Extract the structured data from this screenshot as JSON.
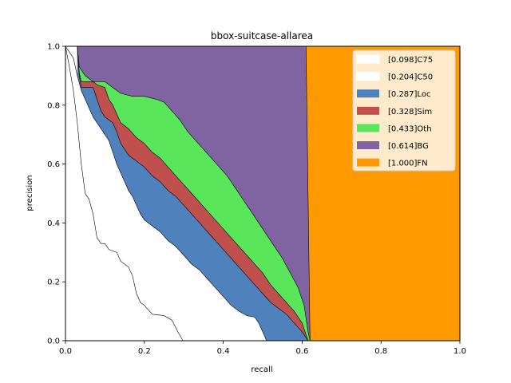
{
  "chart_data": {
    "type": "area",
    "title": "bbox-suitcase-allarea",
    "xlabel": "recall",
    "ylabel": "precision",
    "xlim": [
      0,
      1
    ],
    "ylim": [
      0,
      1
    ],
    "xticks": [
      "0.0",
      "0.2",
      "0.4",
      "0.6",
      "0.8",
      "1.0"
    ],
    "yticks": [
      "0.0",
      "0.2",
      "0.4",
      "0.6",
      "0.8",
      "1.0"
    ],
    "grid": false,
    "legend_position": "top-right",
    "series": [
      {
        "name": "[0.098]C75",
        "color": "#ffffff",
        "points": [
          [
            0,
            1.0
          ],
          [
            0.01,
            0.93
          ],
          [
            0.02,
            0.85
          ],
          [
            0.03,
            0.74
          ],
          [
            0.04,
            0.6
          ],
          [
            0.05,
            0.5
          ],
          [
            0.06,
            0.48
          ],
          [
            0.07,
            0.43
          ],
          [
            0.08,
            0.35
          ],
          [
            0.09,
            0.33
          ],
          [
            0.1,
            0.33
          ],
          [
            0.11,
            0.31
          ],
          [
            0.13,
            0.3
          ],
          [
            0.14,
            0.27
          ],
          [
            0.16,
            0.25
          ],
          [
            0.17,
            0.22
          ],
          [
            0.18,
            0.16
          ],
          [
            0.19,
            0.13
          ],
          [
            0.2,
            0.12
          ],
          [
            0.22,
            0.09
          ],
          [
            0.25,
            0.085
          ],
          [
            0.27,
            0.07
          ],
          [
            0.285,
            0.03
          ],
          [
            0.298,
            0.0
          ]
        ]
      },
      {
        "name": "[0.204]C50",
        "color": "#ffffff",
        "points": [
          [
            0,
            1.0
          ],
          [
            0.02,
            0.96
          ],
          [
            0.03,
            0.9
          ],
          [
            0.04,
            0.85
          ],
          [
            0.05,
            0.82
          ],
          [
            0.06,
            0.79
          ],
          [
            0.07,
            0.76
          ],
          [
            0.08,
            0.74
          ],
          [
            0.09,
            0.72
          ],
          [
            0.1,
            0.7
          ],
          [
            0.11,
            0.68
          ],
          [
            0.12,
            0.64
          ],
          [
            0.13,
            0.6
          ],
          [
            0.14,
            0.57
          ],
          [
            0.15,
            0.54
          ],
          [
            0.16,
            0.51
          ],
          [
            0.17,
            0.49
          ],
          [
            0.18,
            0.46
          ],
          [
            0.19,
            0.43
          ],
          [
            0.2,
            0.41
          ],
          [
            0.22,
            0.39
          ],
          [
            0.24,
            0.37
          ],
          [
            0.26,
            0.34
          ],
          [
            0.28,
            0.32
          ],
          [
            0.3,
            0.29
          ],
          [
            0.32,
            0.26
          ],
          [
            0.34,
            0.24
          ],
          [
            0.36,
            0.21
          ],
          [
            0.38,
            0.18
          ],
          [
            0.4,
            0.15
          ],
          [
            0.42,
            0.12
          ],
          [
            0.44,
            0.1
          ],
          [
            0.46,
            0.085
          ],
          [
            0.48,
            0.08
          ],
          [
            0.49,
            0.06
          ],
          [
            0.5,
            0.03
          ],
          [
            0.51,
            0.0
          ]
        ]
      },
      {
        "name": "[0.287]Loc",
        "color": "#4f81bd",
        "points": [
          [
            0.03,
            1.0
          ],
          [
            0.035,
            0.9
          ],
          [
            0.04,
            0.86
          ],
          [
            0.07,
            0.86
          ],
          [
            0.08,
            0.82
          ],
          [
            0.09,
            0.78
          ],
          [
            0.1,
            0.76
          ],
          [
            0.11,
            0.75
          ],
          [
            0.12,
            0.74
          ],
          [
            0.13,
            0.71
          ],
          [
            0.14,
            0.67
          ],
          [
            0.16,
            0.63
          ],
          [
            0.18,
            0.61
          ],
          [
            0.2,
            0.59
          ],
          [
            0.22,
            0.56
          ],
          [
            0.24,
            0.54
          ],
          [
            0.26,
            0.51
          ],
          [
            0.28,
            0.49
          ],
          [
            0.3,
            0.46
          ],
          [
            0.32,
            0.43
          ],
          [
            0.34,
            0.4
          ],
          [
            0.36,
            0.37
          ],
          [
            0.38,
            0.34
          ],
          [
            0.4,
            0.31
          ],
          [
            0.42,
            0.28
          ],
          [
            0.44,
            0.25
          ],
          [
            0.46,
            0.22
          ],
          [
            0.48,
            0.19
          ],
          [
            0.5,
            0.16
          ],
          [
            0.52,
            0.13
          ],
          [
            0.54,
            0.11
          ],
          [
            0.56,
            0.09
          ],
          [
            0.58,
            0.06
          ],
          [
            0.6,
            0.03
          ],
          [
            0.615,
            0.0
          ]
        ]
      },
      {
        "name": "[0.328]Sim",
        "color": "#c0504d",
        "points": [
          [
            0.03,
            1.0
          ],
          [
            0.035,
            0.91
          ],
          [
            0.04,
            0.88
          ],
          [
            0.07,
            0.88
          ],
          [
            0.08,
            0.87
          ],
          [
            0.1,
            0.86
          ],
          [
            0.11,
            0.82
          ],
          [
            0.12,
            0.8
          ],
          [
            0.13,
            0.77
          ],
          [
            0.14,
            0.74
          ],
          [
            0.16,
            0.72
          ],
          [
            0.18,
            0.69
          ],
          [
            0.2,
            0.67
          ],
          [
            0.22,
            0.64
          ],
          [
            0.24,
            0.62
          ],
          [
            0.26,
            0.59
          ],
          [
            0.28,
            0.56
          ],
          [
            0.3,
            0.53
          ],
          [
            0.32,
            0.5
          ],
          [
            0.34,
            0.47
          ],
          [
            0.36,
            0.44
          ],
          [
            0.38,
            0.41
          ],
          [
            0.4,
            0.38
          ],
          [
            0.42,
            0.35
          ],
          [
            0.44,
            0.32
          ],
          [
            0.46,
            0.29
          ],
          [
            0.48,
            0.26
          ],
          [
            0.5,
            0.23
          ],
          [
            0.52,
            0.19
          ],
          [
            0.54,
            0.16
          ],
          [
            0.56,
            0.13
          ],
          [
            0.58,
            0.1
          ],
          [
            0.6,
            0.06
          ],
          [
            0.615,
            0.0
          ]
        ]
      },
      {
        "name": "[0.433]Oth",
        "color": "#5ae65a",
        "points": [
          [
            0.03,
            1.0
          ],
          [
            0.035,
            0.93
          ],
          [
            0.05,
            0.9
          ],
          [
            0.07,
            0.88
          ],
          [
            0.1,
            0.88
          ],
          [
            0.11,
            0.87
          ],
          [
            0.12,
            0.86
          ],
          [
            0.14,
            0.84
          ],
          [
            0.17,
            0.83
          ],
          [
            0.2,
            0.83
          ],
          [
            0.23,
            0.82
          ],
          [
            0.25,
            0.81
          ],
          [
            0.27,
            0.78
          ],
          [
            0.29,
            0.75
          ],
          [
            0.31,
            0.71
          ],
          [
            0.33,
            0.68
          ],
          [
            0.35,
            0.65
          ],
          [
            0.37,
            0.62
          ],
          [
            0.39,
            0.59
          ],
          [
            0.41,
            0.56
          ],
          [
            0.43,
            0.52
          ],
          [
            0.45,
            0.48
          ],
          [
            0.47,
            0.44
          ],
          [
            0.49,
            0.4
          ],
          [
            0.51,
            0.36
          ],
          [
            0.53,
            0.32
          ],
          [
            0.55,
            0.28
          ],
          [
            0.57,
            0.23
          ],
          [
            0.59,
            0.18
          ],
          [
            0.605,
            0.12
          ],
          [
            0.615,
            0.03
          ],
          [
            0.62,
            0.0
          ]
        ]
      },
      {
        "name": "[0.614]BG",
        "color": "#8064a2",
        "points": [
          [
            0.03,
            1.0
          ],
          [
            0.61,
            1.0
          ],
          [
            0.615,
            0.5
          ],
          [
            0.62,
            0.0
          ]
        ]
      },
      {
        "name": "[1.000]FN",
        "color": "#ff9900",
        "points": [
          [
            0.61,
            1.0
          ],
          [
            1.0,
            1.0
          ],
          [
            1.0,
            0.0
          ],
          [
            0.62,
            0.0
          ]
        ]
      }
    ]
  }
}
